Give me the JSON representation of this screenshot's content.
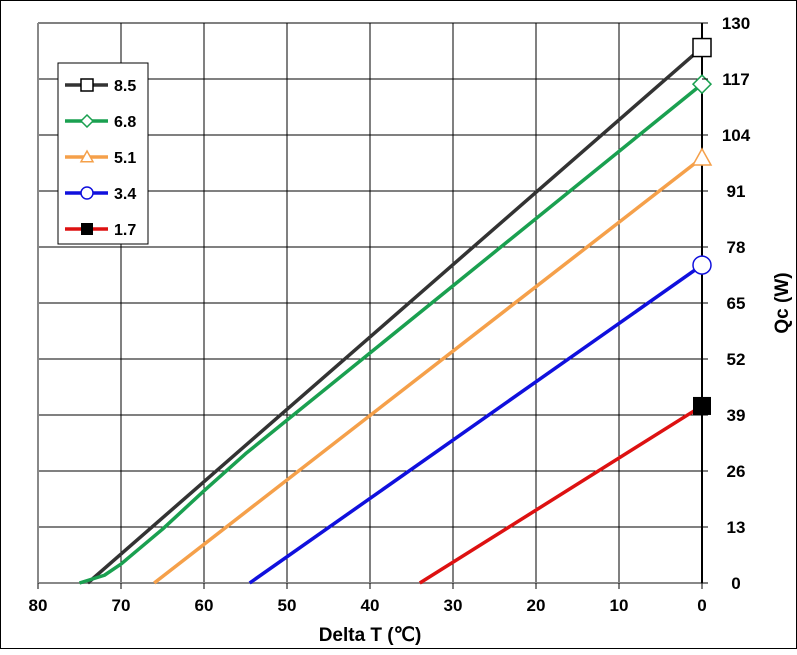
{
  "chart_data": {
    "type": "line",
    "title": "",
    "xlabel": "Delta T (℃)",
    "ylabel": "Qc (W)",
    "xlim": [
      80,
      0
    ],
    "ylim": [
      0,
      130
    ],
    "xticks": [
      80,
      70,
      60,
      50,
      40,
      30,
      20,
      10,
      0
    ],
    "yticks": [
      0,
      13,
      26,
      39,
      52,
      65,
      78,
      91,
      104,
      117,
      130
    ],
    "grid": true,
    "y_axis_side": "right",
    "legend_position": "top-left",
    "series": [
      {
        "name": "8.5",
        "color": "#333333",
        "marker": "square-open",
        "x": [
          74,
          0
        ],
        "y": [
          0,
          124.3
        ]
      },
      {
        "name": "6.8",
        "color": "#1aa050",
        "marker": "diamond-open",
        "x": [
          75,
          72,
          70,
          65,
          60,
          55,
          50,
          0
        ],
        "y": [
          0,
          1.8,
          4.4,
          12.5,
          21.4,
          30,
          37.8,
          115.8
        ]
      },
      {
        "name": "5.1",
        "color": "#f5a04a",
        "marker": "triangle-open",
        "x": [
          66,
          0
        ],
        "y": [
          0,
          98.7
        ]
      },
      {
        "name": "3.4",
        "color": "#1010dd",
        "marker": "circle-open",
        "x": [
          54.5,
          0
        ],
        "y": [
          0,
          73.8
        ]
      },
      {
        "name": "1.7",
        "color": "#dd1111",
        "marker": "square-filled",
        "x": [
          34,
          0
        ],
        "y": [
          0,
          41.1
        ]
      }
    ]
  }
}
